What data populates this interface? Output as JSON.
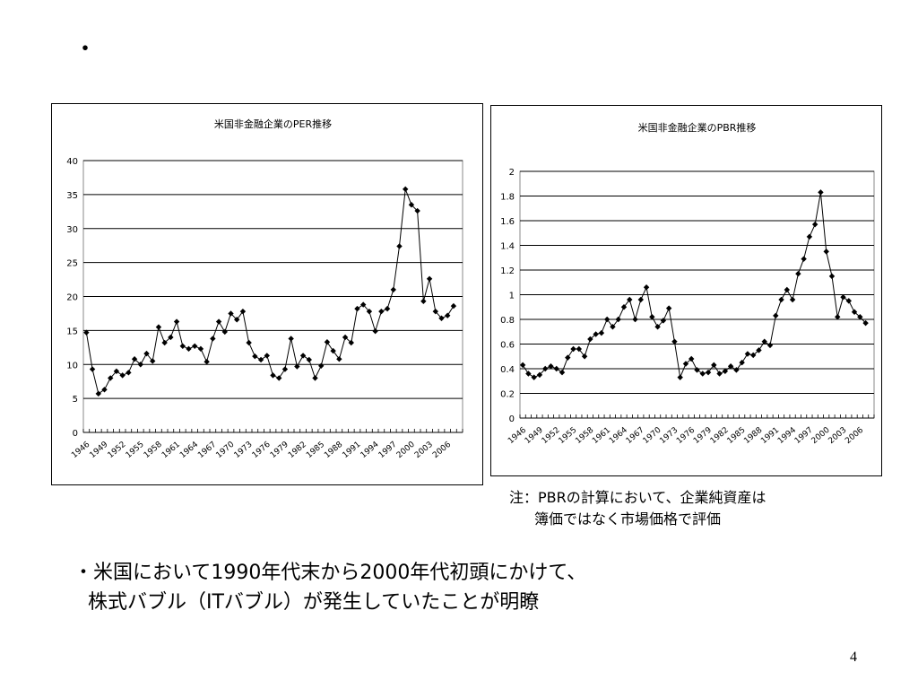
{
  "slide": {
    "title": "・",
    "note_line1": "注：PBRの計算において、企業純資産は",
    "note_line2": "簿価ではなく市場価格で評価",
    "bullet_line1": "・米国において1990年代末から2000年代初頭にかけて、",
    "bullet_line2": "株式バブル（ITバブル）が発生していたことが明瞭",
    "page_number": "4"
  },
  "chart_data": [
    {
      "type": "line",
      "title": "米国非金融企業のPER推移",
      "xlabel": "",
      "ylabel": "",
      "x_start": 1946,
      "x_end": 2008,
      "x_ticklabels": [
        "1946",
        "1949",
        "1952",
        "1955",
        "1958",
        "1961",
        "1964",
        "1967",
        "1970",
        "1973",
        "1976",
        "1979",
        "1982",
        "1985",
        "1988",
        "1991",
        "1994",
        "1997",
        "2000",
        "2003",
        "2006"
      ],
      "y_ticks": [
        0,
        5,
        10,
        15,
        20,
        25,
        30,
        35,
        40
      ],
      "ylim": [
        0,
        40
      ],
      "grid": true,
      "legend": "none",
      "series": [
        {
          "values": [
            14.7,
            9.3,
            5.7,
            6.3,
            8,
            9,
            8.4,
            8.8,
            10.8,
            10,
            11.6,
            10.5,
            15.5,
            13.2,
            14,
            16.3,
            12.7,
            12.3,
            12.7,
            12.3,
            10.4,
            13.8,
            16.3,
            14.8,
            17.5,
            16.6,
            17.8,
            13.2,
            11.2,
            10.7,
            11.3,
            8.4,
            8,
            9.3,
            13.8,
            9.7,
            11.3,
            10.7,
            8,
            9.8,
            13.3,
            12,
            10.8,
            14,
            13.2,
            18.2,
            18.8,
            17.8,
            14.9,
            17.8,
            18.2,
            21,
            27.4,
            35.8,
            33.5,
            32.6,
            19.3,
            22.6,
            17.8,
            16.8,
            17.2,
            18.6
          ]
        }
      ]
    },
    {
      "type": "line",
      "title": "米国非金融企業のPBR推移",
      "xlabel": "",
      "ylabel": "",
      "x_start": 1946,
      "x_end": 2008,
      "x_ticklabels": [
        "1946",
        "1949",
        "1952",
        "1955",
        "1958",
        "1961",
        "1964",
        "1967",
        "1970",
        "1973",
        "1976",
        "1979",
        "1982",
        "1985",
        "1988",
        "1991",
        "1994",
        "1997",
        "2000",
        "2003",
        "2006"
      ],
      "y_ticks": [
        "0",
        "0.2",
        "0.4",
        "0.6",
        "0.8",
        "1",
        "1.2",
        "1.4",
        "1.6",
        "1.8",
        "2"
      ],
      "ylim": [
        0,
        2
      ],
      "grid": true,
      "legend": "none",
      "series": [
        {
          "values": [
            0.43,
            0.36,
            0.33,
            0.35,
            0.4,
            0.42,
            0.4,
            0.37,
            0.49,
            0.56,
            0.56,
            0.5,
            0.64,
            0.68,
            0.69,
            0.8,
            0.74,
            0.8,
            0.9,
            0.96,
            0.8,
            0.96,
            1.06,
            0.82,
            0.74,
            0.79,
            0.89,
            0.62,
            0.33,
            0.44,
            0.48,
            0.39,
            0.36,
            0.37,
            0.43,
            0.36,
            0.38,
            0.42,
            0.39,
            0.45,
            0.52,
            0.51,
            0.55,
            0.62,
            0.59,
            0.83,
            0.96,
            1.04,
            0.96,
            1.17,
            1.29,
            1.47,
            1.57,
            1.83,
            1.35,
            1.15,
            0.82,
            0.98,
            0.95,
            0.86,
            0.82,
            0.77
          ]
        }
      ]
    }
  ]
}
